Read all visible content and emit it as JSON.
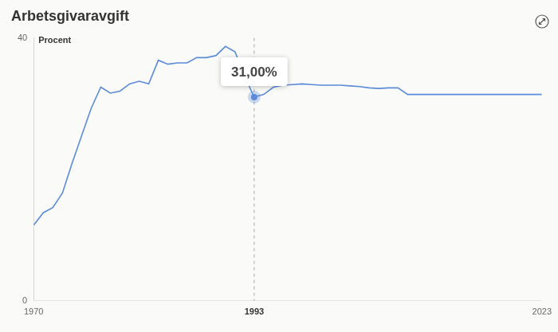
{
  "chart_data": {
    "type": "line",
    "title": "Arbetsgivaravgift",
    "y_label": "Procent",
    "x": [
      1970,
      1971,
      1972,
      1973,
      1974,
      1975,
      1976,
      1977,
      1978,
      1979,
      1980,
      1981,
      1982,
      1983,
      1984,
      1985,
      1986,
      1987,
      1988,
      1989,
      1990,
      1991,
      1992,
      1993,
      1994,
      1995,
      1996,
      1997,
      1998,
      1999,
      2000,
      2001,
      2002,
      2003,
      2004,
      2005,
      2006,
      2007,
      2008,
      2009,
      2010,
      2011,
      2012,
      2013,
      2014,
      2015,
      2016,
      2017,
      2018,
      2019,
      2020,
      2021,
      2022,
      2023
    ],
    "values": [
      11.5,
      13.4,
      14.2,
      16.4,
      20.9,
      25.1,
      29.3,
      32.5,
      31.6,
      31.9,
      33.0,
      33.4,
      33.0,
      36.6,
      36.0,
      36.2,
      36.2,
      37.0,
      37.0,
      37.3,
      38.7,
      37.9,
      34.1,
      31.0,
      31.4,
      32.5,
      32.8,
      32.9,
      33.0,
      32.9,
      32.8,
      32.8,
      32.8,
      32.7,
      32.6,
      32.4,
      32.3,
      32.4,
      32.4,
      31.4,
      31.4,
      31.4,
      31.4,
      31.4,
      31.4,
      31.4,
      31.4,
      31.4,
      31.4,
      31.4,
      31.4,
      31.4,
      31.4,
      31.4
    ],
    "color": "#5b8bd9",
    "xlim": [
      1970,
      2023
    ],
    "xticks": [
      1970,
      1993,
      2023
    ],
    "ylim": [
      0,
      40
    ],
    "yticks": [
      0,
      40
    ],
    "grid": false,
    "annotations": [
      {
        "x": 1993,
        "y": 31,
        "label": "31,00%"
      }
    ]
  }
}
